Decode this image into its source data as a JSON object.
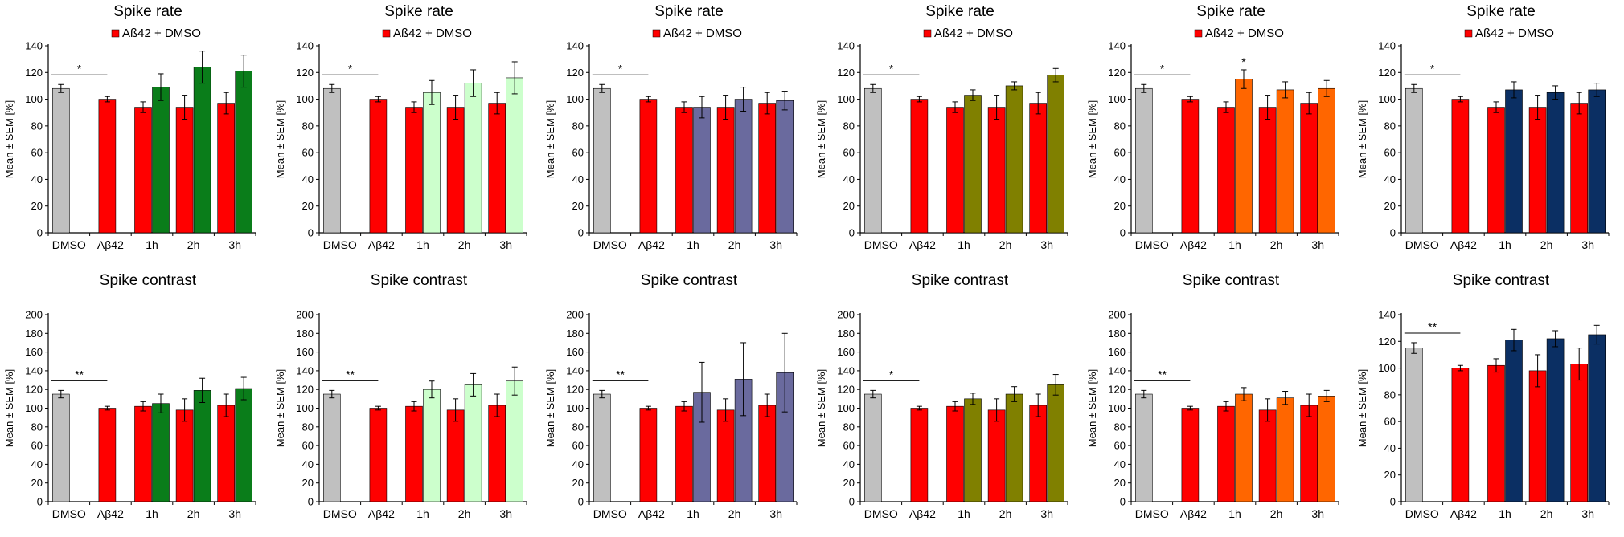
{
  "colors": {
    "dmso": "#c0c0c0",
    "abeta": "#ff0000",
    "dark_green": "#0a7d1a",
    "light_green": "#ccffcc",
    "slate_blue": "#6a6a9e",
    "olive": "#808000",
    "orange": "#ff6600",
    "navy": "#0b2f63"
  },
  "chart_data": [
    {
      "type": "bar",
      "title": "Spike rate",
      "ylabel": "Mean ± SEM [%]",
      "ylim": [
        0,
        140
      ],
      "ytick_step": 20,
      "legend": "Aß42 + DMSO",
      "legend_placement": "top-center",
      "categories": [
        "DMSO",
        "Aβ42",
        "1h",
        "2h",
        "3h"
      ],
      "treatment_color": "dark_green",
      "series": [
        {
          "name": "DMSO",
          "values": [
            108,
            null,
            null,
            null,
            null
          ],
          "errors": [
            3,
            null,
            null,
            null,
            null
          ]
        },
        {
          "name": "Aß42 + DMSO",
          "values": [
            null,
            100,
            94,
            94,
            97
          ],
          "errors": [
            null,
            2,
            4,
            9,
            8
          ]
        },
        {
          "name": "treatment",
          "values": [
            null,
            null,
            109,
            124,
            121
          ],
          "errors": [
            null,
            null,
            10,
            12,
            12
          ]
        }
      ],
      "annotations": [
        {
          "text": "*",
          "bracket": [
            "DMSO",
            "Aβ42"
          ]
        }
      ]
    },
    {
      "type": "bar",
      "title": "Spike rate",
      "ylabel": "Mean ± SEM [%]",
      "ylim": [
        0,
        140
      ],
      "ytick_step": 20,
      "legend": "Aß42 + DMSO",
      "legend_placement": "top-center",
      "categories": [
        "DMSO",
        "Aβ42",
        "1h",
        "2h",
        "3h"
      ],
      "treatment_color": "light_green",
      "series": [
        {
          "name": "DMSO",
          "values": [
            108,
            null,
            null,
            null,
            null
          ],
          "errors": [
            3,
            null,
            null,
            null,
            null
          ]
        },
        {
          "name": "Aß42 + DMSO",
          "values": [
            null,
            100,
            94,
            94,
            97
          ],
          "errors": [
            null,
            2,
            4,
            9,
            8
          ]
        },
        {
          "name": "treatment",
          "values": [
            null,
            null,
            105,
            112,
            116
          ],
          "errors": [
            null,
            null,
            9,
            10,
            12
          ]
        }
      ],
      "annotations": [
        {
          "text": "*",
          "bracket": [
            "DMSO",
            "Aβ42"
          ]
        }
      ]
    },
    {
      "type": "bar",
      "title": "Spike rate",
      "ylabel": "Mean ± SEM [%]",
      "ylim": [
        0,
        140
      ],
      "ytick_step": 20,
      "legend": "Aß42 + DMSO",
      "legend_placement": "top-center",
      "categories": [
        "DMSO",
        "Aβ42",
        "1h",
        "2h",
        "3h"
      ],
      "treatment_color": "slate_blue",
      "series": [
        {
          "name": "DMSO",
          "values": [
            108,
            null,
            null,
            null,
            null
          ],
          "errors": [
            3,
            null,
            null,
            null,
            null
          ]
        },
        {
          "name": "Aß42 + DMSO",
          "values": [
            null,
            100,
            94,
            94,
            97
          ],
          "errors": [
            null,
            2,
            4,
            9,
            8
          ]
        },
        {
          "name": "treatment",
          "values": [
            null,
            null,
            94,
            100,
            99
          ],
          "errors": [
            null,
            null,
            8,
            9,
            7
          ]
        }
      ],
      "annotations": [
        {
          "text": "*",
          "bracket": [
            "DMSO",
            "Aβ42"
          ]
        }
      ]
    },
    {
      "type": "bar",
      "title": "Spike rate",
      "ylabel": "Mean ± SEM [%]",
      "ylim": [
        0,
        140
      ],
      "ytick_step": 20,
      "legend": "Aß42 + DMSO",
      "legend_placement": "top-center",
      "categories": [
        "DMSO",
        "Aβ42",
        "1h",
        "2h",
        "3h"
      ],
      "treatment_color": "olive",
      "series": [
        {
          "name": "DMSO",
          "values": [
            108,
            null,
            null,
            null,
            null
          ],
          "errors": [
            3,
            null,
            null,
            null,
            null
          ]
        },
        {
          "name": "Aß42 + DMSO",
          "values": [
            null,
            100,
            94,
            94,
            97
          ],
          "errors": [
            null,
            2,
            4,
            9,
            8
          ]
        },
        {
          "name": "treatment",
          "values": [
            null,
            null,
            103,
            110,
            118
          ],
          "errors": [
            null,
            null,
            4,
            3,
            5
          ]
        }
      ],
      "annotations": [
        {
          "text": "*",
          "bracket": [
            "DMSO",
            "Aβ42"
          ]
        }
      ]
    },
    {
      "type": "bar",
      "title": "Spike rate",
      "ylabel": "Mean ± SEM [%]",
      "ylim": [
        0,
        140
      ],
      "ytick_step": 20,
      "legend": "Aß42 + DMSO",
      "legend_placement": "top-center",
      "categories": [
        "DMSO",
        "Aβ42",
        "1h",
        "2h",
        "3h"
      ],
      "treatment_color": "orange",
      "series": [
        {
          "name": "DMSO",
          "values": [
            108,
            null,
            null,
            null,
            null
          ],
          "errors": [
            3,
            null,
            null,
            null,
            null
          ]
        },
        {
          "name": "Aß42 + DMSO",
          "values": [
            null,
            100,
            94,
            94,
            97
          ],
          "errors": [
            null,
            2,
            4,
            9,
            8
          ]
        },
        {
          "name": "treatment",
          "values": [
            null,
            null,
            115,
            107,
            108
          ],
          "errors": [
            null,
            null,
            7,
            6,
            6
          ]
        }
      ],
      "annotations": [
        {
          "text": "*",
          "bracket": [
            "DMSO",
            "Aβ42"
          ]
        },
        {
          "text": "*",
          "above": "1h"
        }
      ]
    },
    {
      "type": "bar",
      "title": "Spike rate",
      "ylabel": "Mean ± SEM [%]",
      "ylim": [
        0,
        140
      ],
      "ytick_step": 20,
      "legend": "Aß42 + DMSO",
      "legend_placement": "top-center",
      "categories": [
        "DMSO",
        "Aβ42",
        "1h",
        "2h",
        "3h"
      ],
      "treatment_color": "navy",
      "series": [
        {
          "name": "DMSO",
          "values": [
            108,
            null,
            null,
            null,
            null
          ],
          "errors": [
            3,
            null,
            null,
            null,
            null
          ]
        },
        {
          "name": "Aß42 + DMSO",
          "values": [
            null,
            100,
            94,
            94,
            97
          ],
          "errors": [
            null,
            2,
            4,
            9,
            8
          ]
        },
        {
          "name": "treatment",
          "values": [
            null,
            null,
            107,
            105,
            107
          ],
          "errors": [
            null,
            null,
            6,
            5,
            5
          ]
        }
      ],
      "annotations": [
        {
          "text": "*",
          "bracket": [
            "DMSO",
            "Aβ42"
          ]
        }
      ]
    },
    {
      "type": "bar",
      "title": "Spike contrast",
      "ylabel": "Mean ± SEM [%]",
      "ylim": [
        0,
        200
      ],
      "ytick_step": 20,
      "categories": [
        "DMSO",
        "Aβ42",
        "1h",
        "2h",
        "3h"
      ],
      "treatment_color": "dark_green",
      "series": [
        {
          "name": "DMSO",
          "values": [
            115,
            null,
            null,
            null,
            null
          ],
          "errors": [
            4,
            null,
            null,
            null,
            null
          ]
        },
        {
          "name": "Aß42 + DMSO",
          "values": [
            null,
            100,
            102,
            98,
            103
          ],
          "errors": [
            null,
            2,
            5,
            12,
            12
          ]
        },
        {
          "name": "treatment",
          "values": [
            null,
            null,
            105,
            119,
            121
          ],
          "errors": [
            null,
            null,
            10,
            13,
            12
          ]
        }
      ],
      "annotations": [
        {
          "text": "**",
          "bracket": [
            "DMSO",
            "Aβ42"
          ]
        }
      ]
    },
    {
      "type": "bar",
      "title": "Spike contrast",
      "ylabel": "Mean ± SEM [%]",
      "ylim": [
        0,
        200
      ],
      "ytick_step": 20,
      "categories": [
        "DMSO",
        "Aβ42",
        "1h",
        "2h",
        "3h"
      ],
      "treatment_color": "light_green",
      "series": [
        {
          "name": "DMSO",
          "values": [
            115,
            null,
            null,
            null,
            null
          ],
          "errors": [
            4,
            null,
            null,
            null,
            null
          ]
        },
        {
          "name": "Aß42 + DMSO",
          "values": [
            null,
            100,
            102,
            98,
            103
          ],
          "errors": [
            null,
            2,
            5,
            12,
            12
          ]
        },
        {
          "name": "treatment",
          "values": [
            null,
            null,
            120,
            125,
            129
          ],
          "errors": [
            null,
            null,
            9,
            12,
            15
          ]
        }
      ],
      "annotations": [
        {
          "text": "**",
          "bracket": [
            "DMSO",
            "Aβ42"
          ]
        }
      ]
    },
    {
      "type": "bar",
      "title": "Spike contrast",
      "ylabel": "Mean ± SEM [%]",
      "ylim": [
        0,
        200
      ],
      "ytick_step": 20,
      "categories": [
        "DMSO",
        "Aβ42",
        "1h",
        "2h",
        "3h"
      ],
      "treatment_color": "slate_blue",
      "series": [
        {
          "name": "DMSO",
          "values": [
            115,
            null,
            null,
            null,
            null
          ],
          "errors": [
            4,
            null,
            null,
            null,
            null
          ]
        },
        {
          "name": "Aß42 + DMSO",
          "values": [
            null,
            100,
            102,
            98,
            103
          ],
          "errors": [
            null,
            2,
            5,
            12,
            12
          ]
        },
        {
          "name": "treatment",
          "values": [
            null,
            null,
            117,
            131,
            138
          ],
          "errors": [
            null,
            null,
            32,
            39,
            42
          ]
        }
      ],
      "annotations": [
        {
          "text": "**",
          "bracket": [
            "DMSO",
            "Aβ42"
          ]
        }
      ]
    },
    {
      "type": "bar",
      "title": "Spike contrast",
      "ylabel": "Mean ± SEM [%]",
      "ylim": [
        0,
        200
      ],
      "ytick_step": 20,
      "categories": [
        "DMSO",
        "Aβ42",
        "1h",
        "2h",
        "3h"
      ],
      "treatment_color": "olive",
      "series": [
        {
          "name": "DMSO",
          "values": [
            115,
            null,
            null,
            null,
            null
          ],
          "errors": [
            4,
            null,
            null,
            null,
            null
          ]
        },
        {
          "name": "Aß42 + DMSO",
          "values": [
            null,
            100,
            102,
            98,
            103
          ],
          "errors": [
            null,
            2,
            5,
            12,
            12
          ]
        },
        {
          "name": "treatment",
          "values": [
            null,
            null,
            110,
            115,
            125
          ],
          "errors": [
            null,
            null,
            6,
            8,
            11
          ]
        }
      ],
      "annotations": [
        {
          "text": "*",
          "bracket": [
            "DMSO",
            "Aβ42"
          ]
        }
      ]
    },
    {
      "type": "bar",
      "title": "Spike contrast",
      "ylabel": "Mean ± SEM [%]",
      "ylim": [
        0,
        200
      ],
      "ytick_step": 20,
      "categories": [
        "DMSO",
        "Aβ42",
        "1h",
        "2h",
        "3h"
      ],
      "treatment_color": "orange",
      "series": [
        {
          "name": "DMSO",
          "values": [
            115,
            null,
            null,
            null,
            null
          ],
          "errors": [
            4,
            null,
            null,
            null,
            null
          ]
        },
        {
          "name": "Aß42 + DMSO",
          "values": [
            null,
            100,
            102,
            98,
            103
          ],
          "errors": [
            null,
            2,
            5,
            12,
            12
          ]
        },
        {
          "name": "treatment",
          "values": [
            null,
            null,
            115,
            111,
            113
          ],
          "errors": [
            null,
            null,
            7,
            7,
            6
          ]
        }
      ],
      "annotations": [
        {
          "text": "**",
          "bracket": [
            "DMSO",
            "Aβ42"
          ]
        }
      ]
    },
    {
      "type": "bar",
      "title": "Spike contrast",
      "ylabel": "Mean ± SEM [%]",
      "ylim": [
        0,
        140
      ],
      "ytick_step": 20,
      "categories": [
        "DMSO",
        "Aβ42",
        "1h",
        "2h",
        "3h"
      ],
      "treatment_color": "navy",
      "series": [
        {
          "name": "DMSO",
          "values": [
            115,
            null,
            null,
            null,
            null
          ],
          "errors": [
            4,
            null,
            null,
            null,
            null
          ]
        },
        {
          "name": "Aß42 + DMSO",
          "values": [
            null,
            100,
            102,
            98,
            103
          ],
          "errors": [
            null,
            2,
            5,
            12,
            12
          ]
        },
        {
          "name": "treatment",
          "values": [
            null,
            null,
            121,
            122,
            125
          ],
          "errors": [
            null,
            null,
            8,
            6,
            7
          ]
        }
      ],
      "annotations": [
        {
          "text": "**",
          "bracket": [
            "DMSO",
            "Aβ42"
          ]
        }
      ]
    }
  ]
}
